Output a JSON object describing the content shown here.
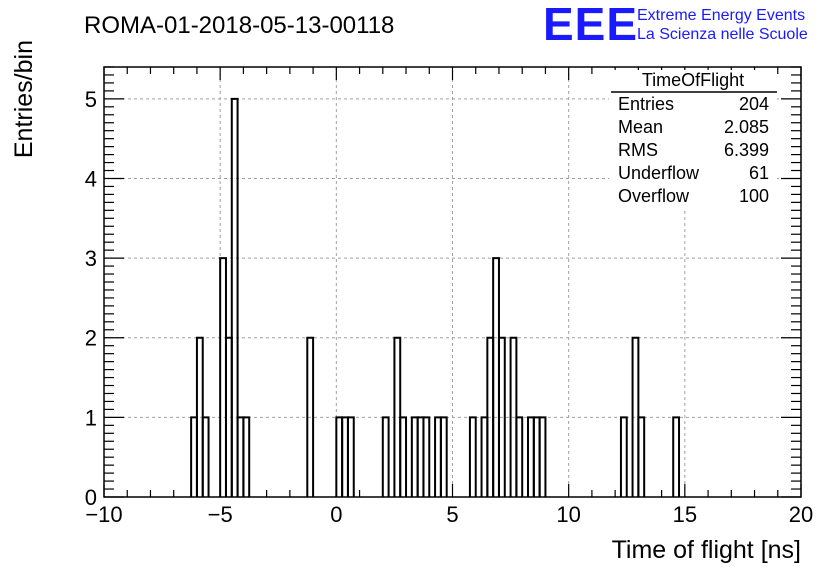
{
  "header": {
    "run_title": "ROMA-01-2018-05-13-00118",
    "logo_text": "EEE",
    "logo_line1": "Extreme Energy Events",
    "logo_line2": "La Scienza nelle Scuole",
    "logo_color": "#1a1aff"
  },
  "stats_box": {
    "title": "TimeOfFlight",
    "rows": [
      {
        "label": "Entries",
        "value": "204"
      },
      {
        "label": "Mean",
        "value": "2.085"
      },
      {
        "label": "RMS",
        "value": "6.399"
      },
      {
        "label": "Underflow",
        "value": "61"
      },
      {
        "label": "Overflow",
        "value": "100"
      }
    ]
  },
  "chart_data": {
    "type": "histogram",
    "title": "ROMA-01-2018-05-13-00118",
    "xlabel": "Time of flight [ns]",
    "ylabel": "Entries/bin",
    "xlim": [
      -10,
      20
    ],
    "ylim": [
      0,
      5.4
    ],
    "x_ticks": [
      -10,
      -5,
      0,
      5,
      10,
      15,
      20
    ],
    "x_tick_labels": [
      "−10",
      "−5",
      "0",
      "5",
      "10",
      "15",
      "20"
    ],
    "y_ticks": [
      0,
      1,
      2,
      3,
      4,
      5
    ],
    "y_tick_labels": [
      "0",
      "1",
      "2",
      "3",
      "4",
      "5"
    ],
    "grid": true,
    "bin_width": 0.25,
    "series": [
      {
        "bins": [
          {
            "x0": -6.25,
            "x1": -6.0,
            "y": 1
          },
          {
            "x0": -6.0,
            "x1": -5.75,
            "y": 2
          },
          {
            "x0": -5.75,
            "x1": -5.5,
            "y": 1
          },
          {
            "x0": -5.0,
            "x1": -4.75,
            "y": 3
          },
          {
            "x0": -4.75,
            "x1": -4.5,
            "y": 2
          },
          {
            "x0": -4.5,
            "x1": -4.25,
            "y": 5
          },
          {
            "x0": -4.25,
            "x1": -4.0,
            "y": 1
          },
          {
            "x0": -4.0,
            "x1": -3.75,
            "y": 1
          },
          {
            "x0": -1.25,
            "x1": -1.0,
            "y": 2
          },
          {
            "x0": 0.0,
            "x1": 0.25,
            "y": 1
          },
          {
            "x0": 0.25,
            "x1": 0.5,
            "y": 1
          },
          {
            "x0": 0.5,
            "x1": 0.75,
            "y": 1
          },
          {
            "x0": 2.0,
            "x1": 2.25,
            "y": 1
          },
          {
            "x0": 2.5,
            "x1": 2.75,
            "y": 2
          },
          {
            "x0": 2.75,
            "x1": 3.0,
            "y": 1
          },
          {
            "x0": 3.25,
            "x1": 3.5,
            "y": 1
          },
          {
            "x0": 3.5,
            "x1": 3.75,
            "y": 1
          },
          {
            "x0": 3.75,
            "x1": 4.0,
            "y": 1
          },
          {
            "x0": 4.25,
            "x1": 4.5,
            "y": 1
          },
          {
            "x0": 4.5,
            "x1": 4.75,
            "y": 1
          },
          {
            "x0": 5.75,
            "x1": 6.0,
            "y": 1
          },
          {
            "x0": 6.25,
            "x1": 6.5,
            "y": 1
          },
          {
            "x0": 6.5,
            "x1": 6.75,
            "y": 2
          },
          {
            "x0": 6.75,
            "x1": 7.0,
            "y": 3
          },
          {
            "x0": 7.0,
            "x1": 7.25,
            "y": 2
          },
          {
            "x0": 7.5,
            "x1": 7.75,
            "y": 2
          },
          {
            "x0": 7.75,
            "x1": 8.0,
            "y": 1
          },
          {
            "x0": 8.25,
            "x1": 8.5,
            "y": 1
          },
          {
            "x0": 8.5,
            "x1": 8.75,
            "y": 1
          },
          {
            "x0": 8.75,
            "x1": 9.0,
            "y": 1
          },
          {
            "x0": 12.25,
            "x1": 12.5,
            "y": 1
          },
          {
            "x0": 12.75,
            "x1": 13.0,
            "y": 2
          },
          {
            "x0": 13.0,
            "x1": 13.25,
            "y": 1
          },
          {
            "x0": 14.5,
            "x1": 14.75,
            "y": 1
          }
        ]
      }
    ]
  }
}
